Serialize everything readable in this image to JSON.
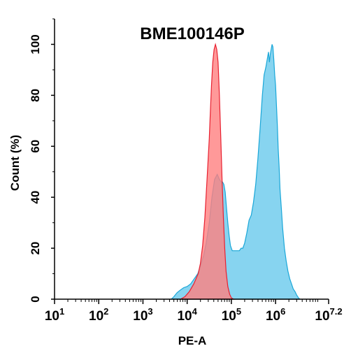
{
  "chart_data": {
    "type": "area",
    "title": "BME100146P",
    "xlabel": "PE-A",
    "ylabel": "Count  (%)",
    "x_scale": "log10",
    "xlim": [
      1,
      7.2
    ],
    "ylim": [
      0,
      110
    ],
    "y_ticks": [
      0,
      20,
      40,
      60,
      80,
      100
    ],
    "x_ticks": [
      {
        "base": "10",
        "exp": "1",
        "value": 1
      },
      {
        "base": "10",
        "exp": "2",
        "value": 2
      },
      {
        "base": "10",
        "exp": "3",
        "value": 3
      },
      {
        "base": "10",
        "exp": "4",
        "value": 4
      },
      {
        "base": "10",
        "exp": "5",
        "value": 5
      },
      {
        "base": "10",
        "exp": "6",
        "value": 6
      },
      {
        "base": "10",
        "exp": "7.2",
        "value": 7.2
      }
    ],
    "grid": false,
    "legend": "none",
    "series": [
      {
        "color_fill": "#87d4f0",
        "color_line": "#1aa7d8",
        "x": [
          3.64,
          3.7,
          3.77,
          3.84,
          3.92,
          4.0,
          4.08,
          4.16,
          4.24,
          4.3,
          4.37,
          4.43,
          4.5,
          4.56,
          4.62,
          4.68,
          4.73,
          4.77,
          4.8,
          4.83,
          4.86,
          4.89,
          4.92,
          4.95,
          4.98,
          5.02,
          5.06,
          5.1,
          5.14,
          5.18,
          5.22,
          5.26,
          5.3,
          5.35,
          5.4,
          5.45,
          5.5,
          5.55,
          5.6,
          5.65,
          5.7,
          5.74,
          5.78,
          5.81,
          5.84,
          5.86,
          5.88,
          5.9,
          5.92,
          5.94,
          5.96,
          5.98,
          6.0,
          6.02,
          6.04,
          6.06,
          6.08,
          6.1,
          6.13,
          6.16,
          6.2,
          6.24,
          6.28,
          6.32,
          6.36,
          6.4,
          6.44,
          6.48,
          6.52,
          6.55
        ],
        "y": [
          0,
          1,
          2.5,
          3.5,
          4.5,
          5,
          6,
          8,
          10,
          13,
          17,
          22,
          30,
          40,
          47,
          49,
          47,
          46,
          46,
          45,
          42,
          36,
          30,
          25,
          21,
          19,
          19,
          19,
          19,
          19,
          20,
          20,
          22,
          26,
          31,
          33,
          38,
          45,
          55,
          67,
          80,
          88,
          91,
          94,
          97,
          93,
          96,
          98,
          100,
          99,
          94,
          88,
          84,
          76,
          68,
          59,
          52,
          43,
          36,
          28,
          20,
          15,
          11,
          8,
          6,
          4,
          3,
          1.5,
          0.5,
          0
        ]
      },
      {
        "color_fill": "#ff7f7f",
        "color_line": "#e82030",
        "x": [
          3.85,
          3.95,
          4.05,
          4.15,
          4.25,
          4.3,
          4.35,
          4.4,
          4.45,
          4.5,
          4.52,
          4.55,
          4.58,
          4.61,
          4.64,
          4.67,
          4.7,
          4.73,
          4.76,
          4.79,
          4.82,
          4.85,
          4.88,
          4.92,
          4.96,
          5.0,
          5.05
        ],
        "y": [
          0,
          1,
          3,
          6,
          10,
          14,
          21,
          32,
          47,
          63,
          72,
          84,
          93,
          98,
          100,
          98,
          93,
          80,
          64,
          47,
          32,
          20,
          11,
          5,
          2,
          0.5,
          0
        ]
      }
    ]
  }
}
